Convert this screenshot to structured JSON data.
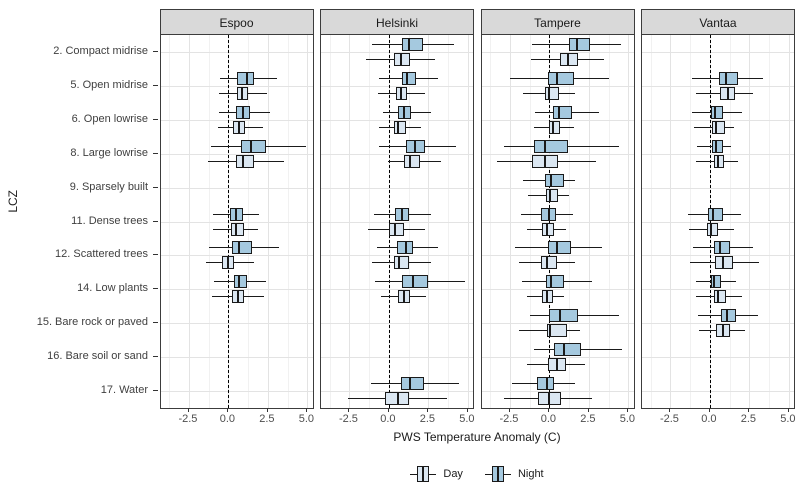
{
  "figure": {
    "xlabel": "PWS Temperature Anomaly (C)",
    "ylabel": "LCZ",
    "legend": {
      "items": [
        {
          "label": "Day",
          "fill": "#dbe7f2"
        },
        {
          "label": "Night",
          "fill": "#a5c9df"
        }
      ]
    }
  },
  "chart_data": {
    "type": "boxplot",
    "orientation": "horizontal",
    "title": "",
    "xlabel": "PWS Temperature Anomaly (C)",
    "ylabel": "LCZ",
    "facets": [
      "Espoo",
      "Helsinki",
      "Tampere",
      "Vantaa"
    ],
    "categories": [
      "2. Compact midrise",
      "5. Open midrise",
      "6. Open lowrise",
      "8. Large lowrise",
      "9. Sparsely built",
      "11. Dense trees",
      "12. Scattered trees",
      "14. Low plants",
      "15. Bare rock or paved",
      "16. Bare soil or sand",
      "17. Water"
    ],
    "x_tick_labels": [
      "-2.5",
      "0.0",
      "2.5",
      "5.0"
    ],
    "x_tick_values": [
      -2.5,
      0.0,
      2.5,
      5.0
    ],
    "x_minor_values": [
      -3.75,
      -1.25,
      1.25,
      3.75
    ],
    "x_range": [
      -4.3,
      5.45
    ],
    "reference_line_x": 0,
    "series": [
      "Night",
      "Day"
    ],
    "stats_format": [
      "whisker_low",
      "q1",
      "median",
      "q3",
      "whisker_high"
    ],
    "colors": {
      "day_fill": "#dbe7f2",
      "night_fill": "#a5c9df",
      "box_stroke": "#1a1a1a",
      "strip_bg": "#d9d9d9",
      "panel_border": "#3c3c3c",
      "grid_major": "#e3e3e3",
      "grid_minor": "#f1f1f1",
      "axis_text": "#4d4d4d",
      "refline": "#000000"
    },
    "boxes": {
      "Espoo": {
        "1": {
          "night": [
            -0.55,
            0.55,
            1.2,
            1.65,
            3.1
          ],
          "day": [
            -0.6,
            0.55,
            0.85,
            1.25,
            2.45
          ]
        },
        "2": {
          "night": [
            -0.6,
            0.45,
            0.95,
            1.35,
            2.65
          ],
          "day": [
            -0.65,
            0.3,
            0.65,
            1.05,
            2.2
          ]
        },
        "3": {
          "night": [
            -1.1,
            0.8,
            1.45,
            2.4,
            4.9
          ],
          "day": [
            -1.3,
            0.5,
            0.95,
            1.65,
            3.5
          ]
        },
        "5": {
          "night": [
            -1.0,
            0.1,
            0.45,
            0.9,
            1.95
          ],
          "day": [
            -0.95,
            0.15,
            0.5,
            1.0,
            1.9
          ]
        },
        "6": {
          "night": [
            -1.2,
            0.25,
            0.65,
            1.5,
            3.2
          ],
          "day": [
            -1.45,
            -0.4,
            0.0,
            0.35,
            1.6
          ]
        },
        "7": {
          "night": [
            -0.9,
            0.35,
            0.7,
            1.2,
            2.4
          ],
          "day": [
            -1.05,
            0.25,
            0.6,
            1.0,
            2.25
          ]
        }
      },
      "Helsinki": {
        "0": {
          "night": [
            -1.1,
            0.8,
            1.25,
            2.15,
            4.1
          ],
          "day": [
            -1.45,
            0.3,
            0.75,
            1.35,
            2.9
          ]
        },
        "1": {
          "night": [
            -0.65,
            0.85,
            1.15,
            1.7,
            3.1
          ],
          "day": [
            -0.7,
            0.45,
            0.75,
            1.15,
            2.3
          ]
        },
        "2": {
          "night": [
            -0.4,
            0.55,
            0.95,
            1.4,
            2.65
          ],
          "day": [
            -0.6,
            0.3,
            0.6,
            1.05,
            2.0
          ]
        },
        "3": {
          "night": [
            -0.6,
            1.05,
            1.65,
            2.3,
            4.25
          ],
          "day": [
            -0.05,
            0.95,
            1.35,
            1.95,
            3.3
          ]
        },
        "5": {
          "night": [
            -0.95,
            0.4,
            0.8,
            1.3,
            2.65
          ],
          "day": [
            -1.3,
            0.0,
            0.4,
            0.95,
            2.3
          ]
        },
        "6": {
          "night": [
            -0.75,
            0.5,
            1.05,
            1.5,
            3.1
          ],
          "day": [
            -1.05,
            0.3,
            0.65,
            1.25,
            2.65
          ]
        },
        "7": {
          "night": [
            -0.9,
            0.8,
            1.55,
            2.45,
            4.8
          ],
          "day": [
            -0.5,
            0.55,
            0.95,
            1.35,
            2.35
          ]
        },
        "10": {
          "night": [
            -1.15,
            0.75,
            1.35,
            2.2,
            4.45
          ],
          "day": [
            -2.6,
            -0.25,
            0.55,
            1.3,
            3.7
          ]
        }
      },
      "Tampere": {
        "0": {
          "night": [
            -1.1,
            1.25,
            1.75,
            2.6,
            4.55
          ],
          "day": [
            -1.15,
            0.65,
            1.15,
            1.8,
            3.45
          ]
        },
        "1": {
          "night": [
            -2.5,
            -0.1,
            0.45,
            1.55,
            3.8
          ],
          "day": [
            -1.7,
            -0.25,
            0.0,
            0.6,
            1.6
          ]
        },
        "2": {
          "night": [
            -0.9,
            0.2,
            0.6,
            1.4,
            3.15
          ],
          "day": [
            -1.0,
            -0.05,
            0.2,
            0.65,
            1.55
          ]
        },
        "3": {
          "night": [
            -2.85,
            -0.95,
            -0.3,
            1.15,
            4.4
          ],
          "day": [
            -3.3,
            -1.1,
            -0.3,
            0.55,
            2.95
          ]
        },
        "4": {
          "night": [
            -1.65,
            -0.3,
            0.1,
            0.9,
            1.65
          ],
          "day": [
            -1.35,
            -0.2,
            0.05,
            0.55,
            1.25
          ]
        },
        "5": {
          "night": [
            -1.8,
            -0.55,
            -0.05,
            0.4,
            1.5
          ],
          "day": [
            -1.45,
            -0.45,
            -0.15,
            0.3,
            1.05
          ]
        },
        "6": {
          "night": [
            -2.2,
            -0.1,
            0.45,
            1.35,
            3.35
          ],
          "day": [
            -1.9,
            -0.55,
            -0.15,
            0.5,
            1.6
          ]
        },
        "7": {
          "night": [
            -1.75,
            -0.2,
            0.1,
            0.95,
            2.7
          ],
          "day": [
            -1.45,
            -0.5,
            -0.15,
            0.2,
            0.95
          ]
        },
        "8": {
          "night": [
            -1.2,
            0.0,
            0.65,
            1.8,
            4.4
          ],
          "day": [
            -1.9,
            -0.15,
            0.05,
            1.1,
            1.95
          ]
        },
        "9": {
          "night": [
            -0.95,
            0.3,
            0.9,
            2.0,
            4.6
          ],
          "day": [
            -1.45,
            -0.1,
            0.45,
            1.05,
            2.25
          ]
        },
        "10": {
          "night": [
            -2.35,
            -0.8,
            -0.15,
            0.3,
            1.6
          ],
          "day": [
            -2.9,
            -0.75,
            -0.05,
            0.75,
            2.7
          ]
        }
      },
      "Vantaa": {
        "1": {
          "night": [
            -1.15,
            0.55,
            1.0,
            1.75,
            3.35
          ],
          "day": [
            -0.9,
            0.65,
            1.15,
            1.6,
            2.75
          ]
        },
        "2": {
          "night": [
            -1.15,
            0.05,
            0.3,
            0.8,
            2.0
          ],
          "day": [
            -1.0,
            0.15,
            0.4,
            0.95,
            1.55
          ]
        },
        "3": {
          "night": [
            -0.8,
            0.15,
            0.4,
            0.8,
            1.35
          ],
          "day": [
            -0.9,
            0.25,
            0.5,
            0.9,
            1.75
          ]
        },
        "5": {
          "night": [
            -1.4,
            -0.15,
            0.2,
            0.8,
            1.95
          ],
          "day": [
            -1.35,
            -0.2,
            0.1,
            0.5,
            1.55
          ]
        },
        "6": {
          "night": [
            -1.05,
            0.25,
            0.65,
            1.25,
            2.7
          ],
          "day": [
            -1.25,
            0.35,
            0.8,
            1.45,
            3.1
          ]
        },
        "7": {
          "night": [
            -0.9,
            0.05,
            0.25,
            0.7,
            1.65
          ],
          "day": [
            -0.85,
            0.25,
            0.5,
            1.05,
            2.05
          ]
        },
        "8": {
          "night": [
            -0.75,
            0.7,
            1.1,
            1.65,
            3.05
          ],
          "day": [
            -0.7,
            0.4,
            0.8,
            1.25,
            2.25
          ]
        }
      }
    }
  }
}
